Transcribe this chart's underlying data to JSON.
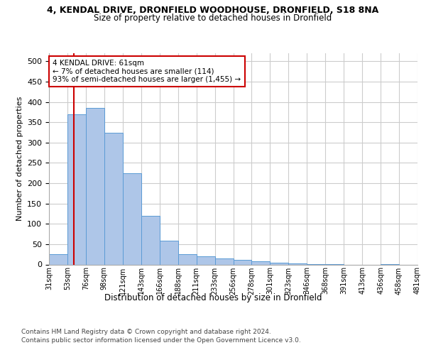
{
  "title_line1": "4, KENDAL DRIVE, DRONFIELD WOODHOUSE, DRONFIELD, S18 8NA",
  "title_line2": "Size of property relative to detached houses in Dronfield",
  "xlabel": "Distribution of detached houses by size in Dronfield",
  "ylabel": "Number of detached properties",
  "footer_line1": "Contains HM Land Registry data © Crown copyright and database right 2024.",
  "footer_line2": "Contains public sector information licensed under the Open Government Licence v3.0.",
  "bin_labels": [
    "31sqm",
    "53sqm",
    "76sqm",
    "98sqm",
    "121sqm",
    "143sqm",
    "166sqm",
    "188sqm",
    "211sqm",
    "233sqm",
    "256sqm",
    "278sqm",
    "301sqm",
    "323sqm",
    "346sqm",
    "368sqm",
    "391sqm",
    "413sqm",
    "436sqm",
    "458sqm",
    "481sqm"
  ],
  "bar_values": [
    25,
    370,
    385,
    325,
    225,
    120,
    58,
    25,
    20,
    15,
    12,
    7,
    5,
    2,
    1,
    1,
    0,
    0,
    1,
    0
  ],
  "bar_color": "#aec6e8",
  "bar_edge_color": "#5b9bd5",
  "property_line_rel": 0.35,
  "property_line_bin": 1,
  "property_line_color": "#cc0000",
  "annotation_text": "4 KENDAL DRIVE: 61sqm\n← 7% of detached houses are smaller (114)\n93% of semi-detached houses are larger (1,455) →",
  "annotation_box_color": "#ffffff",
  "annotation_box_edge_color": "#cc0000",
  "ylim": [
    0,
    520
  ],
  "yticks": [
    0,
    50,
    100,
    150,
    200,
    250,
    300,
    350,
    400,
    450,
    500
  ],
  "background_color": "#ffffff",
  "grid_color": "#cccccc",
  "title1_fontsize": 9,
  "title2_fontsize": 8.5,
  "ylabel_fontsize": 8,
  "tick_fontsize": 8,
  "xtick_fontsize": 7,
  "xlabel_fontsize": 8.5,
  "footer_fontsize": 6.5,
  "annot_fontsize": 7.5
}
